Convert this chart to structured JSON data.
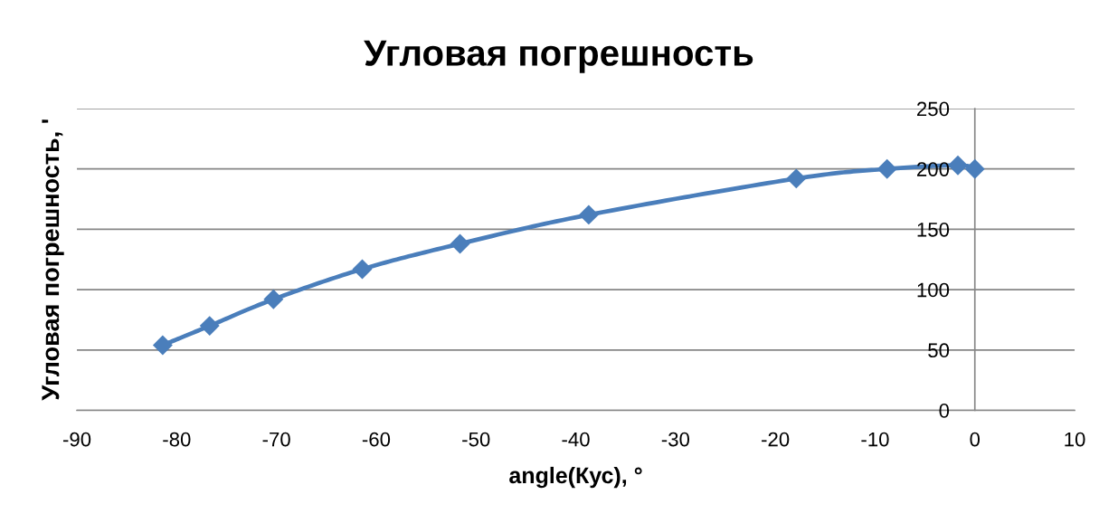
{
  "chart_data": {
    "type": "line",
    "title": "Угловая погрешность",
    "xlabel": "angle(Кус), °",
    "ylabel": "Угловая погрешность, '",
    "x": [
      -81.4,
      -76.7,
      -70.3,
      -61.4,
      -51.6,
      -38.7,
      -17.9,
      -8.8,
      -1.7,
      0
    ],
    "series": [
      {
        "color": "#4a7ebb",
        "values": [
          54,
          70,
          92,
          117,
          138,
          162,
          192,
          200,
          203,
          200
        ]
      }
    ],
    "xlim": [
      -90,
      10
    ],
    "xticks": [
      -90,
      -80,
      -70,
      -60,
      -50,
      -40,
      -30,
      -20,
      -10,
      0,
      10
    ],
    "ylim": [
      0,
      250
    ],
    "yticks": [
      0,
      50,
      100,
      150,
      200,
      250
    ],
    "grid": "y",
    "marker": "diamond",
    "line_style": "solid"
  }
}
